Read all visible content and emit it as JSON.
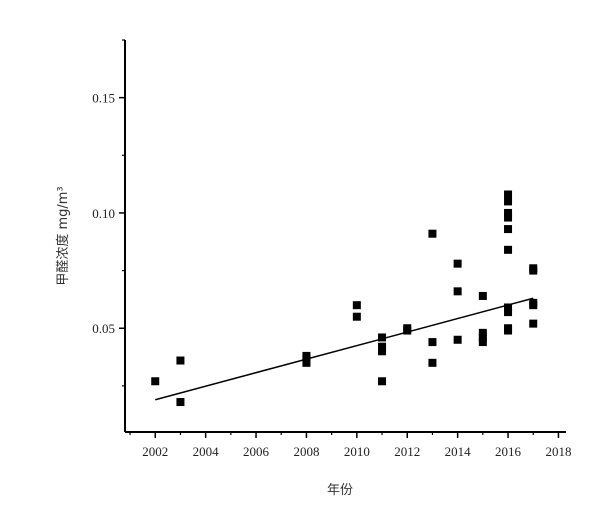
{
  "chart_data": {
    "type": "scatter",
    "xlabel": "年份",
    "ylabel": "甲醛浓度 mg/m³",
    "xlim": [
      2000.8,
      2018.3
    ],
    "ylim": [
      0.005,
      0.175
    ],
    "x_ticks": [
      2002,
      2004,
      2006,
      2008,
      2010,
      2012,
      2014,
      2016,
      2018
    ],
    "x_tick_labels": [
      "2002",
      "2004",
      "2006",
      "2008",
      "2010",
      "2012",
      "2014",
      "2016",
      "2018"
    ],
    "y_ticks": [
      0.05,
      0.1,
      0.15
    ],
    "y_tick_labels": [
      "0.05",
      "0.10",
      "0.15"
    ],
    "grid": false,
    "series": [
      {
        "points": [
          [
            2002,
            0.027
          ],
          [
            2003,
            0.036
          ],
          [
            2003,
            0.018
          ],
          [
            2008,
            0.038
          ],
          [
            2008,
            0.037
          ],
          [
            2008,
            0.035
          ],
          [
            2010,
            0.06
          ],
          [
            2010,
            0.055
          ],
          [
            2011,
            0.046
          ],
          [
            2011,
            0.042
          ],
          [
            2011,
            0.04
          ],
          [
            2011,
            0.027
          ],
          [
            2012,
            0.05
          ],
          [
            2012,
            0.049
          ],
          [
            2013,
            0.091
          ],
          [
            2013,
            0.044
          ],
          [
            2013,
            0.035
          ],
          [
            2014,
            0.078
          ],
          [
            2014,
            0.066
          ],
          [
            2014,
            0.045
          ],
          [
            2015,
            0.064
          ],
          [
            2015,
            0.048
          ],
          [
            2015,
            0.046
          ],
          [
            2015,
            0.044
          ],
          [
            2016,
            0.108
          ],
          [
            2016,
            0.105
          ],
          [
            2016,
            0.1
          ],
          [
            2016,
            0.098
          ],
          [
            2016,
            0.093
          ],
          [
            2016,
            0.084
          ],
          [
            2016,
            0.059
          ],
          [
            2016,
            0.057
          ],
          [
            2016,
            0.05
          ],
          [
            2016,
            0.049
          ],
          [
            2017,
            0.076
          ],
          [
            2017,
            0.075
          ],
          [
            2017,
            0.061
          ],
          [
            2017,
            0.06
          ],
          [
            2017,
            0.052
          ]
        ]
      }
    ],
    "trendline": {
      "x": [
        2002,
        2017
      ],
      "y": [
        0.019,
        0.063
      ]
    }
  }
}
